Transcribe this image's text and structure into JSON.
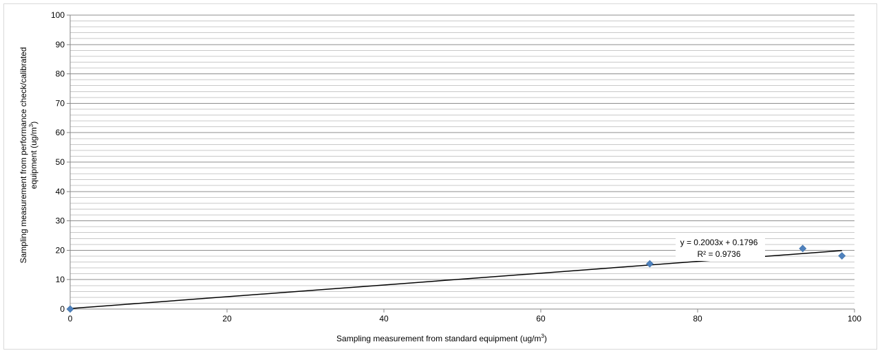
{
  "chart_data": {
    "type": "scatter",
    "title": "",
    "xlabel": {
      "prefix": "Sampling measurement from standard equipment  (ug/m",
      "sup": "3",
      "suffix": ")"
    },
    "ylabel": {
      "line1": "Sampling measurement from performance check/calibrated",
      "line2_prefix": "equipment (ug/m",
      "line2_sup": "3",
      "line2_suffix": ")"
    },
    "xlim": [
      0,
      100
    ],
    "ylim": [
      0,
      100
    ],
    "x_ticks": [
      "0",
      "20",
      "40",
      "60",
      "80",
      "100"
    ],
    "y_ticks": [
      "0",
      "10",
      "20",
      "30",
      "40",
      "50",
      "60",
      "70",
      "80",
      "90",
      "100"
    ],
    "grid": {
      "major": true,
      "minor": true,
      "minor_step": 2
    },
    "legend": "none",
    "series": [
      {
        "marker": "diamond",
        "color": "#4f81bd",
        "points": [
          {
            "x": 0,
            "y": 0
          },
          {
            "x": 73.9,
            "y": 15.4
          },
          {
            "x": 93.4,
            "y": 20.6
          },
          {
            "x": 98.4,
            "y": 18.1
          }
        ]
      }
    ],
    "trendline": {
      "type": "linear",
      "slope": 0.2003,
      "intercept": 0.1796,
      "x_range": [
        0,
        98.4
      ],
      "color": "#000000",
      "equation": "y = 0.2003x + 0.1796",
      "r_squared": "R² = 0.9736"
    }
  }
}
